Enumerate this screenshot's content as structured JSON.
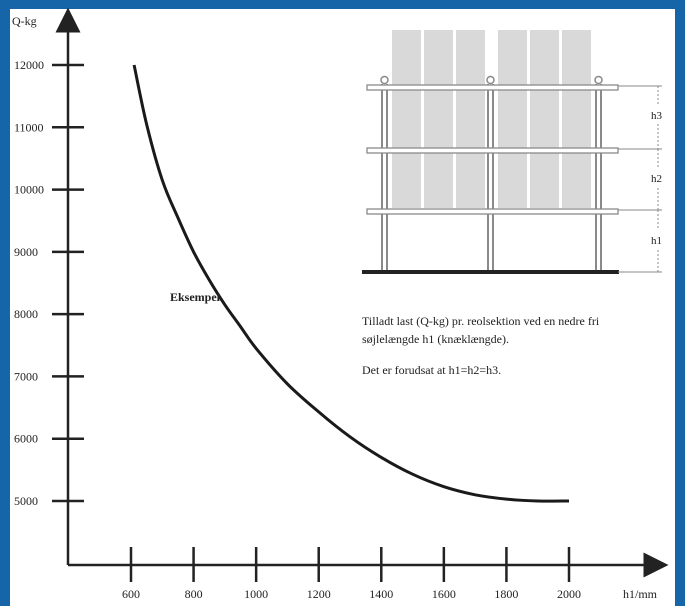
{
  "colors": {
    "border": "#1565a8",
    "axis": "#222222",
    "curve": "#1a1a1a",
    "shelf_fill": "#d9d9d9",
    "rack_line": "#8a8a8a"
  },
  "chart_data": {
    "type": "line",
    "ylabel": "Q-kg",
    "xlabel": "h1/mm",
    "xlim": [
      420,
      2270
    ],
    "ylim": [
      4000,
      12800
    ],
    "x_ticks": [
      600,
      800,
      1000,
      1200,
      1400,
      1600,
      1800,
      2000
    ],
    "y_ticks": [
      5000,
      6000,
      7000,
      8000,
      9000,
      10000,
      11000,
      12000
    ],
    "x_tick_labels": [
      "600",
      "800",
      "1000",
      "1200",
      "1400",
      "1600",
      "1800",
      "2000"
    ],
    "y_tick_labels": [
      "5000",
      "6000",
      "7000",
      "8000",
      "9000",
      "10000",
      "11000",
      "12000"
    ],
    "series": [
      {
        "x": [
          610,
          650,
          700,
          750,
          800,
          850,
          900,
          950,
          1000,
          1100,
          1200,
          1300,
          1400,
          1500,
          1600,
          1700,
          1800,
          1900,
          2000
        ],
        "y": [
          12000,
          11050,
          10150,
          9550,
          9000,
          8550,
          8150,
          7800,
          7450,
          6880,
          6430,
          6030,
          5700,
          5430,
          5230,
          5100,
          5030,
          5000,
          5000
        ]
      }
    ],
    "annotation": "Eksempel",
    "diagram": {
      "labels": [
        "h3",
        "h2",
        "h1"
      ]
    },
    "notes": [
      "Tilladt last (Q-kg) pr. reolsektion ved en nedre fri",
      "søjlelængde h1 (knæklængde).",
      "Det er forudsat at h1=h2=h3."
    ]
  }
}
